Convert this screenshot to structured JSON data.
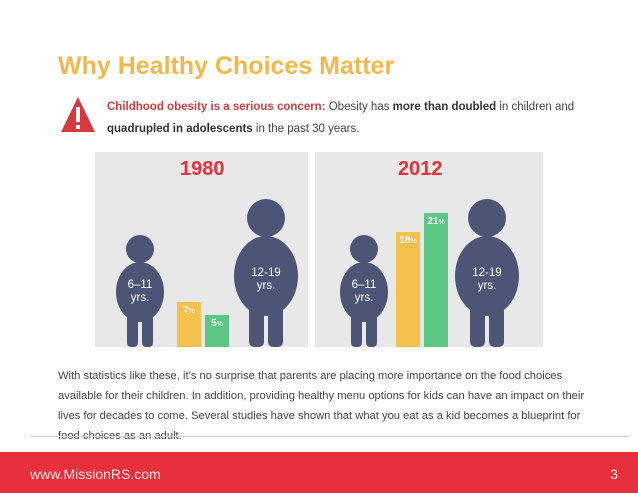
{
  "header": {
    "title": "Why Healthy Choices Matter",
    "alert_lead": "Childhood obesity is a serious concern:",
    "alert_t1": " Obesity has ",
    "alert_b1": "more than doubled",
    "alert_t2": " in children and",
    "alert_b2": "quadrupled in adolescents",
    "alert_t3": " in the past 30 years."
  },
  "chart_data": {
    "type": "bar",
    "panels": [
      {
        "year": "1980",
        "series": [
          {
            "label": "6–11 yrs.",
            "value": 7
          },
          {
            "label": "12-19 yrs.",
            "value": 5
          }
        ]
      },
      {
        "year": "2012",
        "series": [
          {
            "label": "6–11 yrs.",
            "value": 18
          },
          {
            "label": "12-19 yrs.",
            "value": 21
          }
        ]
      }
    ],
    "unit": "%",
    "colors": {
      "children": "#f6c04f",
      "adolescents": "#5bc686",
      "figure": "#4d5576"
    }
  },
  "labels": {
    "y1980": "1980",
    "y2012": "2012",
    "kid1": "6–11",
    "kid2": "yrs.",
    "teen1": "12-19",
    "teen2": "yrs.",
    "p1980a": "7",
    "p1980b": "5",
    "p2012a": "18",
    "p2012b": "21",
    "unit": "%"
  },
  "body": {
    "text": "With statistics like these, it’s no surprise that parents are placing more importance on the food choices available for their children. In addition, providing healthy menu options for kids can have an impact on their lives for decades to come. Several studies have shown that what you eat as a kid becomes a blueprint for food choices as an adult."
  },
  "footer": {
    "url": "www.MissionRS.com",
    "page": "3"
  }
}
